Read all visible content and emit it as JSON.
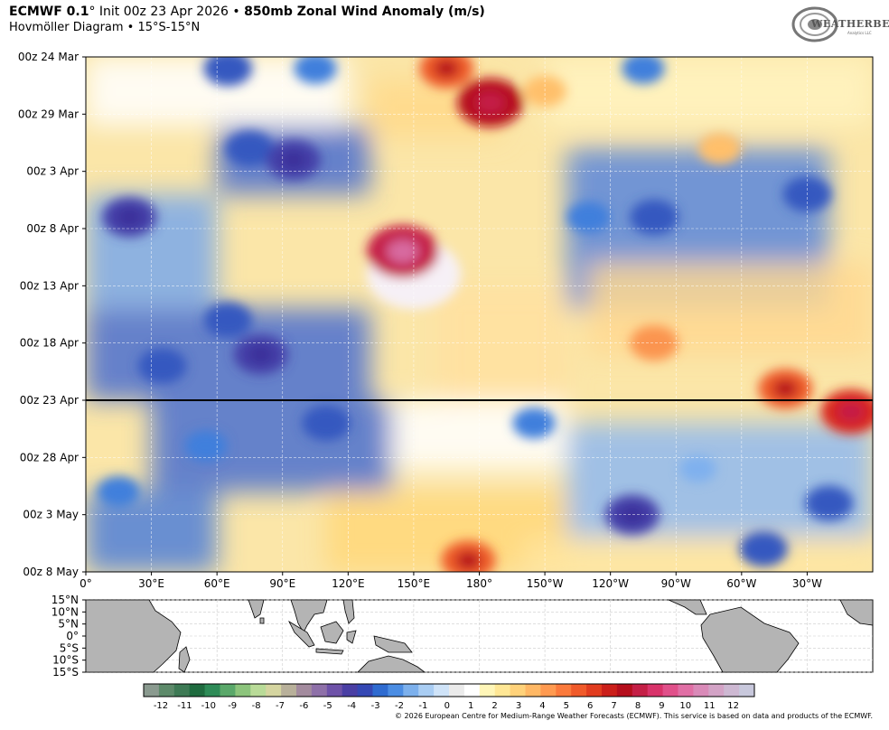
{
  "header": {
    "title_bold_1": "ECMWF 0.1",
    "title_deg": "°",
    "title_mid": " Init 00z 23 Apr 2026 • ",
    "title_bold_2": "850mb Zonal Wind Anomaly (m/s)",
    "subtitle": "Hovmöller Diagram • 15°S-15°N"
  },
  "logo": {
    "text": "WEATHERBELL",
    "sub": "Analytics LLC"
  },
  "footer": "© 2026 European Centre for Medium-Range Weather Forecasts (ECMWF). This service is based on data and products of the ECMWF.",
  "chart_data": {
    "type": "heatmap",
    "title": "850mb Zonal Wind Anomaly (m/s)",
    "x_ticks": [
      "0°",
      "30°E",
      "60°E",
      "90°E",
      "120°E",
      "150°E",
      "180°",
      "150°W",
      "120°W",
      "90°W",
      "60°W",
      "30°W"
    ],
    "x_tick_lons": [
      0,
      30,
      60,
      90,
      120,
      150,
      180,
      210,
      240,
      270,
      300,
      330
    ],
    "x_range": [
      0,
      360
    ],
    "y_ticks": [
      "00z 24 Mar",
      "00z 29 Mar",
      "00z 3 Apr",
      "00z 8 Apr",
      "00z 13 Apr",
      "00z 18 Apr",
      "00z 23 Apr",
      "00z 28 Apr",
      "00z 3 May",
      "00z 8 May"
    ],
    "y_tick_days": [
      0,
      5,
      10,
      15,
      20,
      25,
      30,
      35,
      40,
      45
    ],
    "y_range_days": [
      0,
      45
    ],
    "init_line_day": 30,
    "grid": true,
    "colorbar": {
      "labels": [
        "-12",
        "-11",
        "-10",
        "-9",
        "-8",
        "-7",
        "-6",
        "-5",
        "-4",
        "-3",
        "-2",
        "-1",
        "0",
        "1",
        "2",
        "3",
        "4",
        "5",
        "6",
        "7",
        "8",
        "9",
        "10",
        "11",
        "12"
      ],
      "colors": [
        "#8a9a8f",
        "#5d8a6a",
        "#3e7a55",
        "#1f6b3f",
        "#2e8b57",
        "#5aa86a",
        "#8cc47c",
        "#b9db98",
        "#d5d5a0",
        "#b8b09a",
        "#a38b9e",
        "#8e70a8",
        "#6e52a8",
        "#4a3fa4",
        "#3548b4",
        "#2f6bd0",
        "#4b8de3",
        "#7cb0ec",
        "#a9cdf3",
        "#cfe3f8",
        "#ebebeb",
        "#ffffff",
        "#fff6b8",
        "#ffe795",
        "#ffd27a",
        "#ffb865",
        "#ff9a50",
        "#fb7a3c",
        "#f05a2a",
        "#e13c1f",
        "#cb1f1a",
        "#b50e1c",
        "#c41f46",
        "#d8336a",
        "#e0508a",
        "#e06fa5",
        "#d98ab8",
        "#d3a3c6",
        "#cdb8d2",
        "#c8c8dc"
      ]
    },
    "cells": [
      {
        "day": 1,
        "lon": 65,
        "value": -4
      },
      {
        "day": 1,
        "lon": 105,
        "value": -3
      },
      {
        "day": 1,
        "lon": 255,
        "value": -3
      },
      {
        "day": 1,
        "lon": 165,
        "value": 5
      },
      {
        "day": 4,
        "lon": 185,
        "value": 7
      },
      {
        "day": 3,
        "lon": 210,
        "value": 3
      },
      {
        "day": 8,
        "lon": 75,
        "value": -4
      },
      {
        "day": 9,
        "lon": 95,
        "value": -5
      },
      {
        "day": 8,
        "lon": 290,
        "value": 3
      },
      {
        "day": 14,
        "lon": 20,
        "value": -5
      },
      {
        "day": 14,
        "lon": 260,
        "value": -4
      },
      {
        "day": 14,
        "lon": 230,
        "value": -3
      },
      {
        "day": 12,
        "lon": 330,
        "value": -4
      },
      {
        "day": 19,
        "lon": 150,
        "value": 12
      },
      {
        "day": 17,
        "lon": 145,
        "value": 8
      },
      {
        "day": 23,
        "lon": 65,
        "value": -4
      },
      {
        "day": 26,
        "lon": 80,
        "value": -5
      },
      {
        "day": 27,
        "lon": 35,
        "value": -4
      },
      {
        "day": 25,
        "lon": 260,
        "value": 4
      },
      {
        "day": 29,
        "lon": 320,
        "value": 5
      },
      {
        "day": 31,
        "lon": 350,
        "value": 6
      },
      {
        "day": 32,
        "lon": 110,
        "value": -4
      },
      {
        "day": 32,
        "lon": 205,
        "value": -3
      },
      {
        "day": 34,
        "lon": 55,
        "value": -3
      },
      {
        "day": 40,
        "lon": 250,
        "value": -5
      },
      {
        "day": 39,
        "lon": 340,
        "value": -4
      },
      {
        "day": 38,
        "lon": 15,
        "value": -3
      },
      {
        "day": 44,
        "lon": 175,
        "value": 5
      },
      {
        "day": 43,
        "lon": 310,
        "value": -4
      },
      {
        "day": 36,
        "lon": 280,
        "value": -2
      }
    ]
  },
  "map_panel": {
    "y_ticks": [
      "15°N",
      "10°N",
      "5°N",
      "0°",
      "5°S",
      "10°S",
      "15°S"
    ]
  }
}
